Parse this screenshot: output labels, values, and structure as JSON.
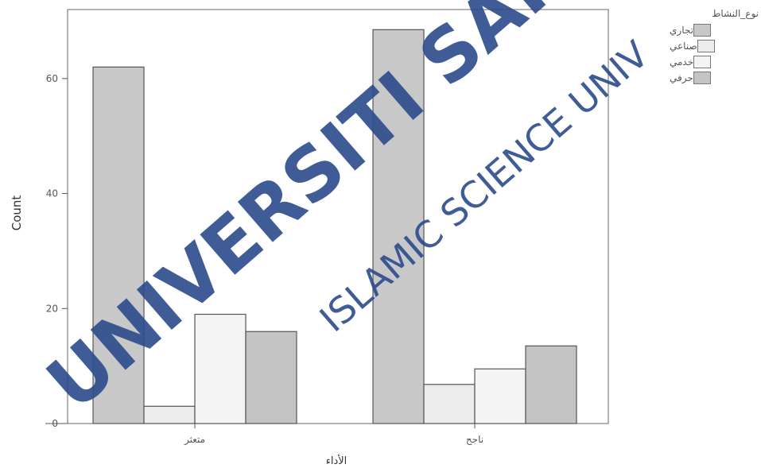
{
  "chart_data": {
    "type": "bar",
    "title": "",
    "xlabel": "الأداء",
    "ylabel": "Count",
    "ylim": [
      0,
      72
    ],
    "y_ticks": [
      0,
      20,
      40,
      60
    ],
    "categories": [
      "متعثر",
      "ناجح"
    ],
    "legend_title": "نوع_النشاط",
    "legend_position": "top-right",
    "grid": false,
    "series": [
      {
        "name": "تجاري",
        "values": [
          62,
          68.5
        ],
        "color": "#c8c8c8"
      },
      {
        "name": "صناعي",
        "values": [
          3,
          6.8
        ],
        "color": "#ececec"
      },
      {
        "name": "خدمي",
        "values": [
          19,
          9.5
        ],
        "color": "#f4f4f4"
      },
      {
        "name": "حرفي",
        "values": [
          16,
          13.5
        ],
        "color": "#c4c4c4"
      }
    ]
  },
  "watermark": {
    "main_text": "UNIVERSITI SAINS",
    "sub_text": "ISLAMIC SCIENCE UNIV",
    "color": "#2a4a8c"
  }
}
